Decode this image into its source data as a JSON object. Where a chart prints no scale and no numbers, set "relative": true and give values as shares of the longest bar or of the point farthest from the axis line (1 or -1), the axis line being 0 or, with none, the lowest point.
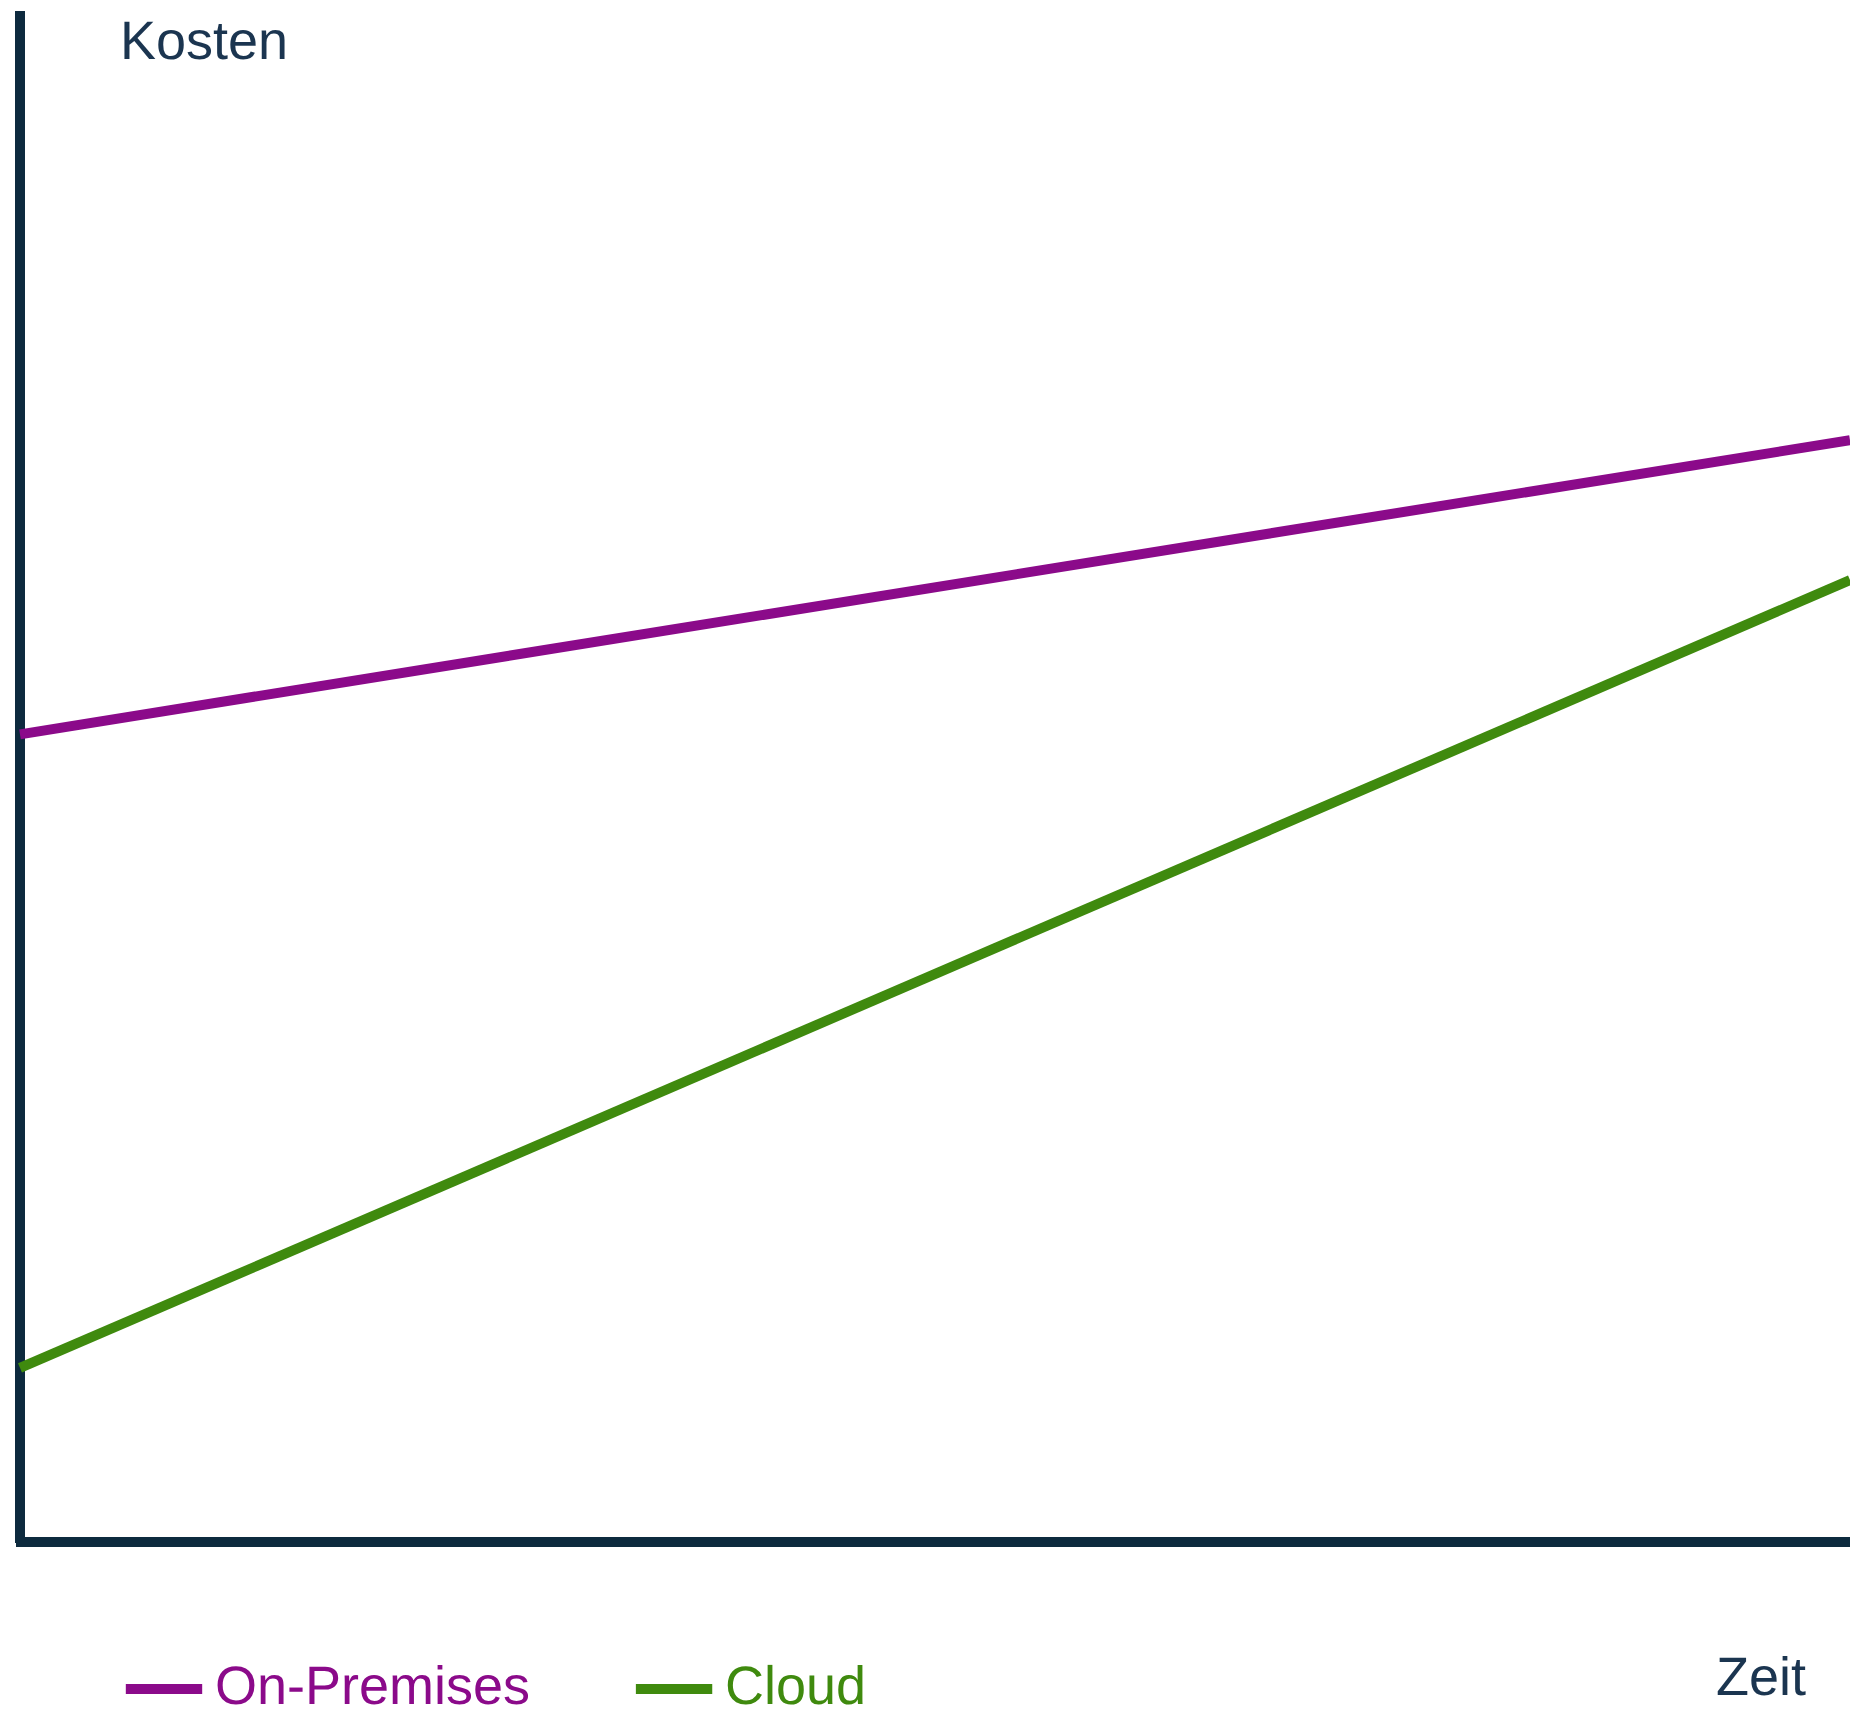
{
  "chart_data": {
    "type": "line",
    "relative": true,
    "xlabel": "Zeit",
    "annotations": [
      "Kosten"
    ],
    "categories": [
      null,
      null
    ],
    "ref_lines": [
      {
        "axis": "y",
        "value": 0,
        "color": "#0d2a3e"
      }
    ],
    "series": [
      {
        "name": "On-Premises",
        "color": "#8b0a8a",
        "values": [
          0.733,
          1
        ]
      },
      {
        "name": "Cloud",
        "color": "#3f8a0e",
        "values": [
          0.158,
          0.873
        ]
      }
    ],
    "legend": "bottom left",
    "marker": "none",
    "line_style": "solid"
  }
}
